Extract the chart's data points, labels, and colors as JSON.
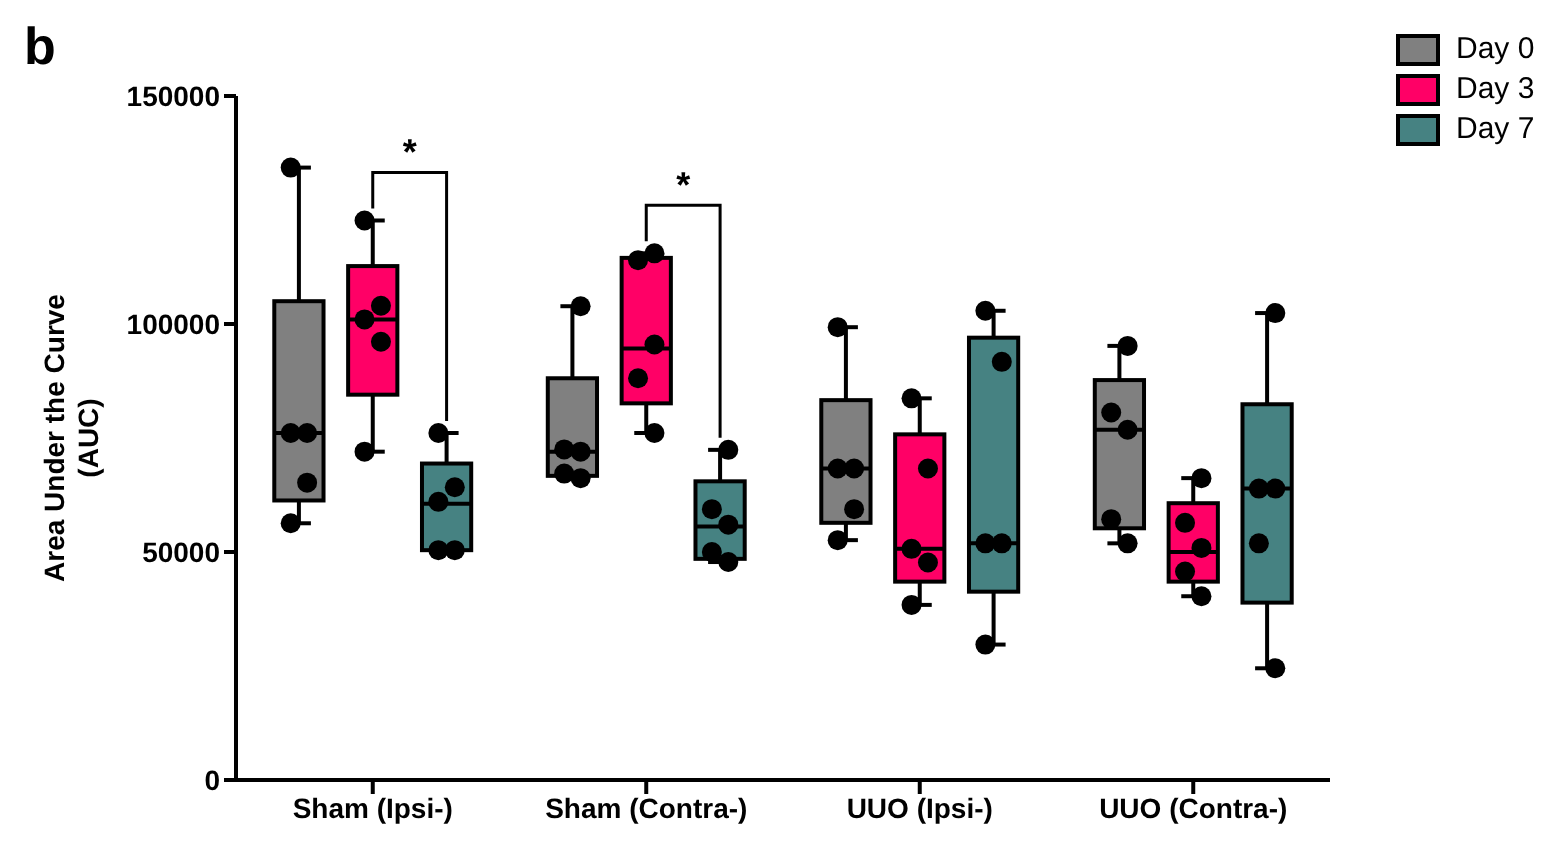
{
  "chart_data": {
    "type": "box",
    "title": "b",
    "ylabel": "Area Under the Curve\n(AUC)",
    "categories": [
      "Sham (Ipsi-)",
      "Sham (Contra-)",
      "UUO (Ipsi-)",
      "UUO (Contra-)"
    ],
    "ylim": [
      0,
      150000
    ],
    "yticks": [
      0,
      50000,
      100000,
      150000
    ],
    "grid": false,
    "legend": "top right",
    "annotations": [
      {
        "text": "*",
        "x": "Sham (Ipsi-)",
        "y": 122700
      },
      {
        "text": "*",
        "x": "Sham (Contra-)",
        "y": 115500
      }
    ],
    "series": [
      {
        "name": "Day 0",
        "type": "box",
        "color": "#808080",
        "boxes": [
          {
            "low": 56300,
            "q1": 61300,
            "median": 76100,
            "q3": 105000,
            "high": 134300
          },
          {
            "low": 66200,
            "q1": 66700,
            "median": 72000,
            "q3": 88100,
            "high": 103900
          },
          {
            "low": 52600,
            "q1": 56400,
            "median": 68300,
            "q3": 83300,
            "high": 99300
          },
          {
            "low": 51900,
            "q1": 55200,
            "median": 76800,
            "q3": 87700,
            "high": 95200
          }
        ]
      },
      {
        "name": "Day 3",
        "type": "box",
        "color": "#ff0066",
        "boxes": [
          {
            "low": 72000,
            "q1": 84500,
            "median": 101000,
            "q3": 112700,
            "high": 122700
          },
          {
            "low": 76100,
            "q1": 82600,
            "median": 94600,
            "q3": 114500,
            "high": 115500
          },
          {
            "low": 38400,
            "q1": 43500,
            "median": 50700,
            "q3": 75800,
            "high": 83700
          },
          {
            "low": 40300,
            "q1": 43500,
            "median": 50000,
            "q3": 60700,
            "high": 66200
          }
        ]
      },
      {
        "name": "Day 7",
        "type": "box",
        "color": "#468282",
        "boxes": [
          {
            "low": 50400,
            "q1": 50400,
            "median": 60600,
            "q3": 69400,
            "high": 76100
          },
          {
            "low": 47800,
            "q1": 48500,
            "median": 55600,
            "q3": 65500,
            "high": 72400
          },
          {
            "low": 29700,
            "q1": 41300,
            "median": 51900,
            "q3": 97000,
            "high": 102900
          },
          {
            "low": 24500,
            "q1": 38900,
            "median": 63900,
            "q3": 82400,
            "high": 102400
          }
        ]
      },
      {
        "type": "scatter",
        "color": "#000000",
        "marker": "circle",
        "x": [
          "Sham (Ipsi-)",
          "Sham (Ipsi-)",
          "Sham (Ipsi-)",
          "Sham (Ipsi-)",
          "Sham (Ipsi-)",
          "Sham (Contra-)",
          "Sham (Contra-)",
          "Sham (Contra-)",
          "Sham (Contra-)",
          "Sham (Contra-)",
          "UUO (Ipsi-)",
          "UUO (Ipsi-)",
          "UUO (Ipsi-)",
          "UUO (Ipsi-)",
          "UUO (Ipsi-)",
          "UUO (Contra-)",
          "UUO (Contra-)",
          "UUO (Contra-)",
          "UUO (Contra-)",
          "UUO (Contra-)"
        ],
        "values": [
          134300,
          76100,
          76100,
          65200,
          56300,
          103900,
          72500,
          72000,
          67200,
          66200,
          99300,
          68300,
          68300,
          59400,
          52600,
          95200,
          80600,
          76800,
          57200,
          51900
        ]
      },
      {
        "type": "scatter",
        "color": "#000000",
        "marker": "circle",
        "x": [
          "Sham (Ipsi-)",
          "Sham (Ipsi-)",
          "Sham (Ipsi-)",
          "Sham (Ipsi-)",
          "Sham (Ipsi-)",
          "Sham (Contra-)",
          "Sham (Contra-)",
          "Sham (Contra-)",
          "Sham (Contra-)",
          "Sham (Contra-)",
          "UUO (Ipsi-)",
          "UUO (Ipsi-)",
          "UUO (Ipsi-)",
          "UUO (Ipsi-)",
          "UUO (Ipsi-)",
          "UUO (Contra-)",
          "UUO (Contra-)",
          "UUO (Contra-)",
          "UUO (Contra-)",
          "UUO (Contra-)"
        ],
        "values": [
          122700,
          104000,
          101000,
          96100,
          72000,
          115500,
          114000,
          95500,
          88100,
          76100,
          83700,
          68300,
          50700,
          47700,
          38400,
          66200,
          56400,
          50900,
          45700,
          40300
        ]
      },
      {
        "type": "scatter",
        "color": "#000000",
        "marker": "circle",
        "x": [
          "Sham (Ipsi-)",
          "Sham (Ipsi-)",
          "Sham (Ipsi-)",
          "Sham (Ipsi-)",
          "Sham (Ipsi-)",
          "Sham (Contra-)",
          "Sham (Contra-)",
          "Sham (Contra-)",
          "Sham (Contra-)",
          "Sham (Contra-)",
          "UUO (Ipsi-)",
          "UUO (Ipsi-)",
          "UUO (Ipsi-)",
          "UUO (Ipsi-)",
          "UUO (Ipsi-)",
          "UUO (Contra-)",
          "UUO (Contra-)",
          "UUO (Contra-)",
          "UUO (Contra-)",
          "UUO (Contra-)"
        ],
        "values": [
          76100,
          64200,
          61000,
          50400,
          50400,
          72400,
          59400,
          56000,
          50000,
          47800,
          102900,
          91700,
          51900,
          51900,
          29700,
          102400,
          63900,
          63900,
          51900,
          24500
        ]
      }
    ]
  }
}
